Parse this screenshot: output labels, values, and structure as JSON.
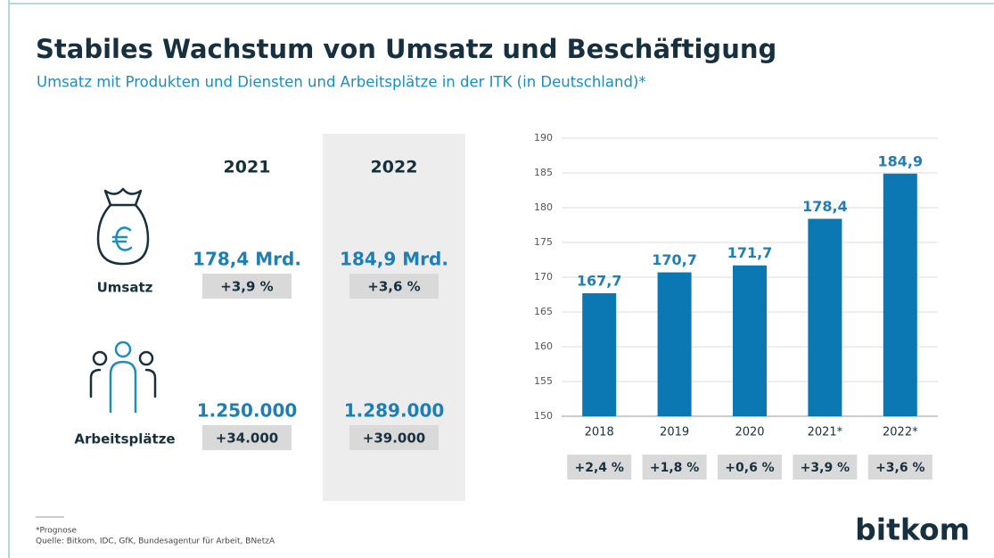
{
  "header": {
    "title": "Stabiles Wachstum von Umsatz und Beschäftigung",
    "subtitle": "Umsatz mit Produkten und Diensten und Arbeitsplätze in der ITK (in Deutschland)*"
  },
  "table": {
    "columns": [
      "2021",
      "2022"
    ],
    "rows": [
      {
        "label": "Umsatz",
        "values": [
          "178,4 Mrd.",
          "184,9 Mrd."
        ],
        "changes": [
          "+3,9 %",
          "+3,6 %"
        ]
      },
      {
        "label": "Arbeitsplätze",
        "values": [
          "1.250.000",
          "1.289.000"
        ],
        "changes": [
          "+34.000",
          "+39.000"
        ]
      }
    ]
  },
  "chart_data": {
    "type": "bar",
    "categories": [
      "2018",
      "2019",
      "2020",
      "2021*",
      "2022*"
    ],
    "values": [
      167.7,
      170.7,
      171.7,
      178.4,
      184.9
    ],
    "value_labels": [
      "167,7",
      "170,7",
      "171,7",
      "178,4",
      "184,9"
    ],
    "growth": [
      "+2,4 %",
      "+1,8 %",
      "+0,6 %",
      "+3,9 %",
      "+3,6 %"
    ],
    "color": "#0b78b4",
    "ylim": [
      150,
      190
    ],
    "yticks": [
      150,
      155,
      160,
      165,
      170,
      175,
      180,
      185,
      190
    ],
    "grid": true
  },
  "footer": {
    "note": "*Prognose",
    "source": "Quelle: Bitkom, IDC, GfK, Bundesagentur für Arbeit, BNetzA",
    "logo": "bitkom"
  }
}
